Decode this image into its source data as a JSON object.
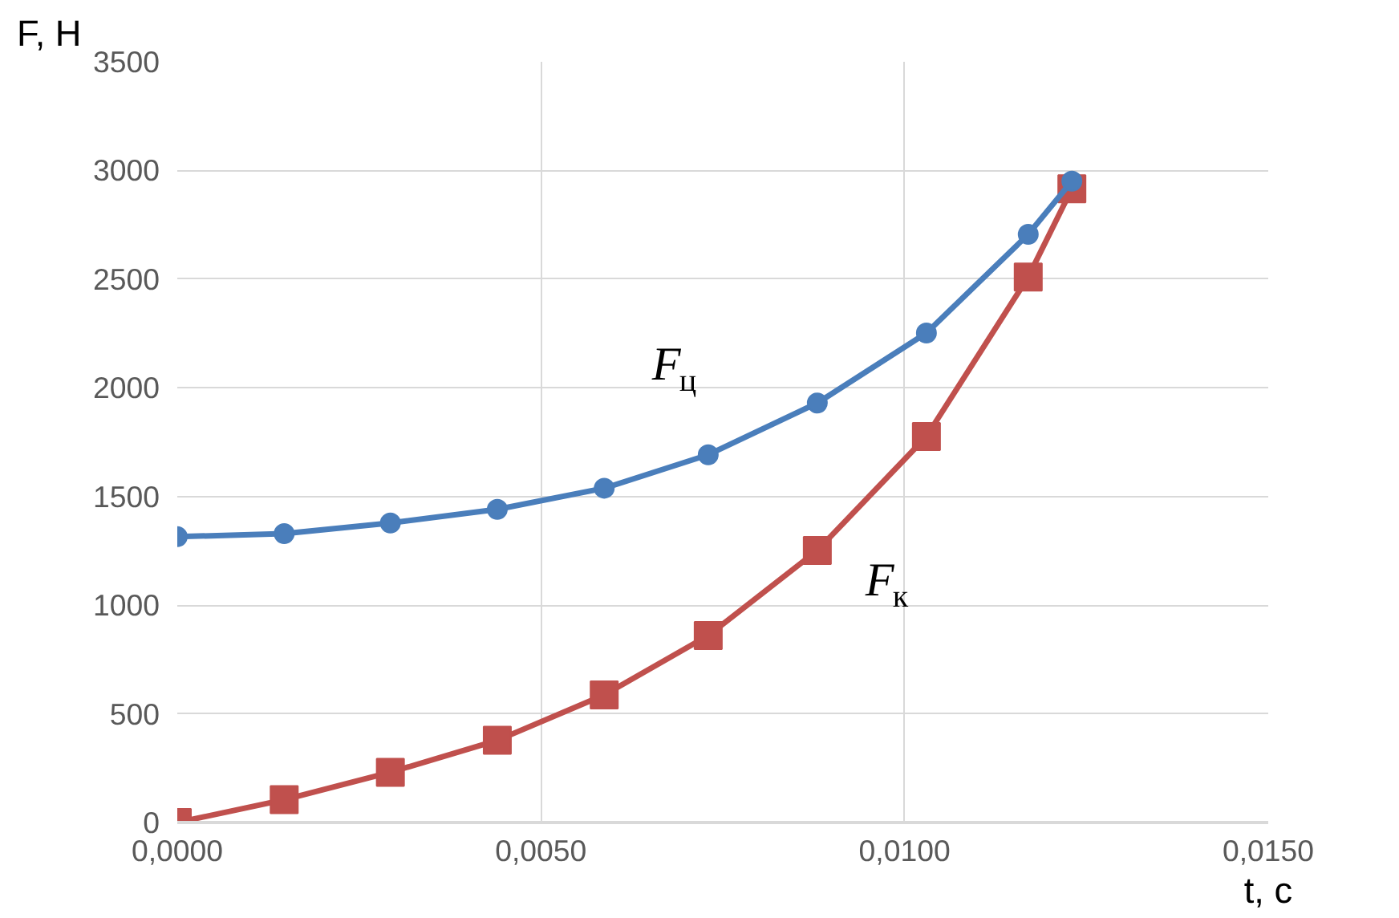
{
  "chart_data": {
    "type": "line",
    "xlabel": "t, с",
    "ylabel": "F, Н",
    "x": [
      0,
      0.00147,
      0.00293,
      0.0044,
      0.00587,
      0.0073,
      0.0088,
      0.0103,
      0.0117,
      0.0123
    ],
    "series": [
      {
        "name": "F$_{ц}$",
        "color": "#4a7ebb",
        "marker": "circle",
        "values": [
          1315,
          1329,
          1378,
          1441,
          1538,
          1692,
          1930,
          2252,
          2706,
          2951
        ]
      },
      {
        "name": "F$_{к}$",
        "color": "#c0504d",
        "marker": "square",
        "values": [
          0,
          105,
          231,
          378,
          587,
          860,
          1252,
          1776,
          2510,
          2916
        ]
      }
    ],
    "xlim": [
      0,
      0.015
    ],
    "ylim": [
      0,
      3500
    ],
    "xticks": [
      {
        "value": 0,
        "label": "0,0000"
      },
      {
        "value": 0.005,
        "label": "0,0050"
      },
      {
        "value": 0.01,
        "label": "0,0100"
      },
      {
        "value": 0.015,
        "label": "0,0150"
      }
    ],
    "yticks": [
      0,
      500,
      1000,
      1500,
      2000,
      2500,
      3000,
      3500
    ],
    "grid": true,
    "line_style": "solid"
  }
}
